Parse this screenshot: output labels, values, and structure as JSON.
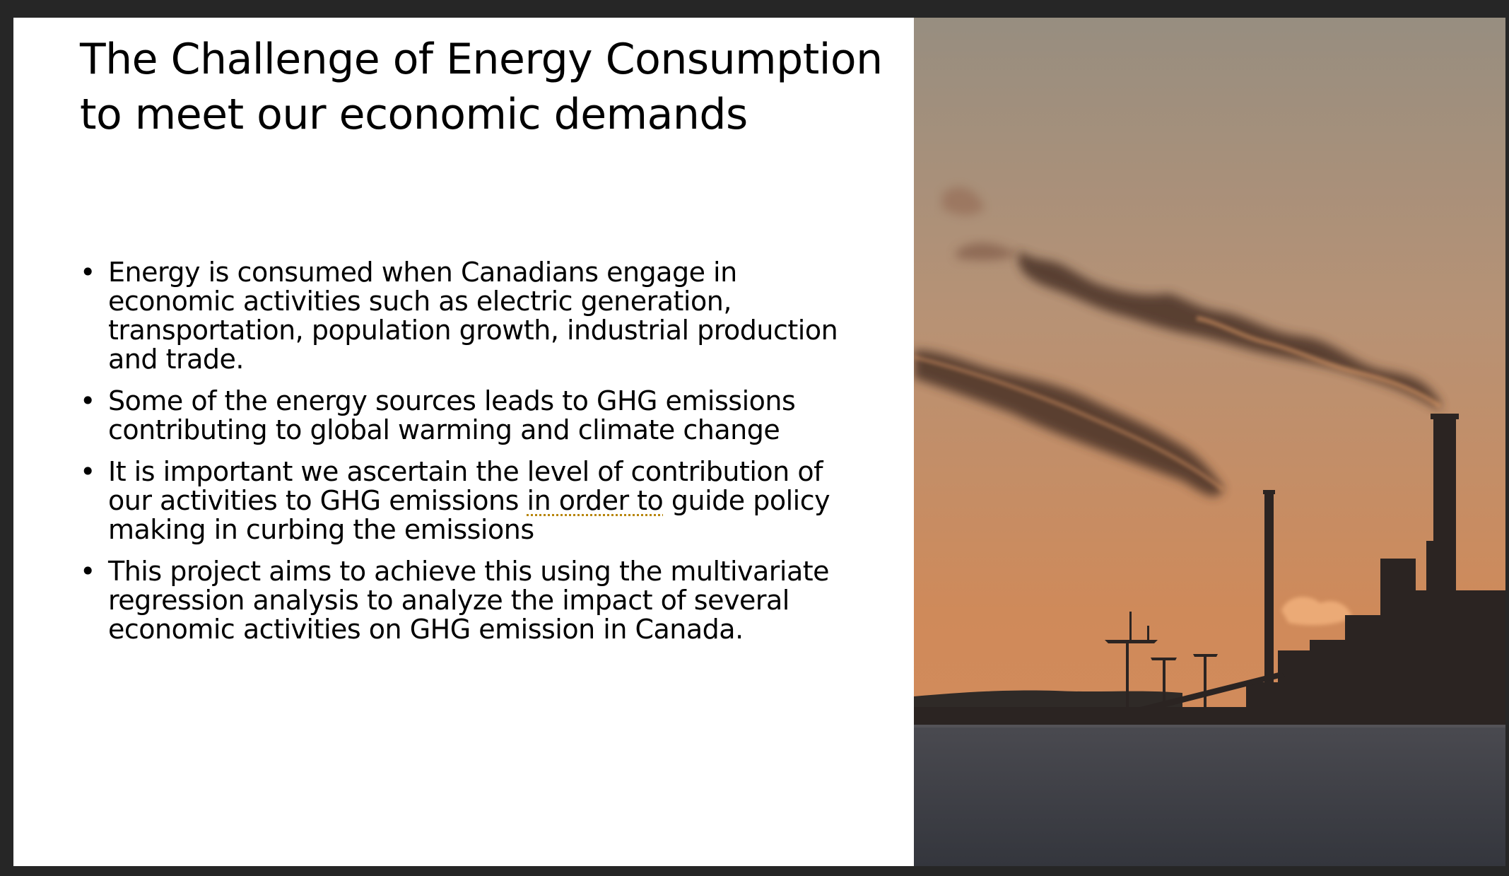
{
  "slide": {
    "title": "The Challenge of Energy Consumption to meet our economic demands",
    "bullets": [
      {
        "text": "Energy is consumed when Canadians engage in economic activities such as electric generation, transportation, population growth, industrial production and trade."
      },
      {
        "text": "Some of the energy sources leads to GHG emissions contributing to global warming and climate change"
      },
      {
        "before": "It is important we ascertain the level of contribution of our activities to GHG emissions ",
        "flagged": "in order to",
        "after": " guide policy making in curbing the emissions"
      },
      {
        "text": "This project aims to achieve this using the multivariate regression analysis to analyze the impact of several economic activities on GHG emission in Canada."
      }
    ],
    "bullet_glyph": "•"
  },
  "image": {
    "subject": "industrial smokestacks emitting smoke at sunset over water",
    "colors": {
      "sky_top": "#978e80",
      "sky_bottom": "#d08a58",
      "water": "#3b3d44",
      "silhouette": "#2b2422",
      "smoke": "#4a3028"
    }
  }
}
